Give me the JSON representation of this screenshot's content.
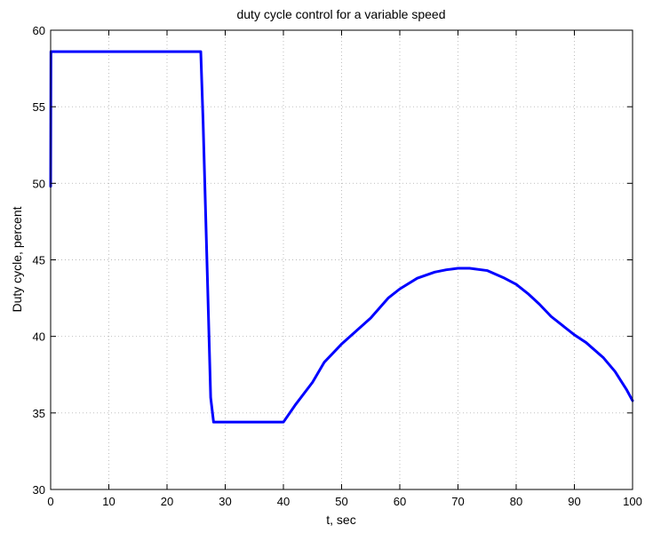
{
  "chart_data": {
    "type": "line",
    "title": "duty cycle control for a variable speed",
    "xlabel": "t, sec",
    "ylabel": "Duty cycle, percent",
    "xlim": [
      0,
      100
    ],
    "ylim": [
      30,
      60
    ],
    "xticks": [
      0,
      10,
      20,
      30,
      40,
      50,
      60,
      70,
      80,
      90,
      100
    ],
    "yticks": [
      30,
      35,
      40,
      45,
      50,
      55,
      60
    ],
    "grid": true,
    "line_color": "#0000ff",
    "series": [
      {
        "x": [
          0,
          0.05,
          1,
          10,
          20,
          24,
          25.5,
          25.8,
          26.2,
          27,
          27.5,
          28,
          30,
          35,
          40,
          42,
          45,
          47,
          50,
          55,
          58,
          60,
          63,
          66,
          68,
          70,
          72,
          75,
          78,
          80,
          82,
          84,
          86,
          88,
          90,
          92,
          95,
          97,
          98,
          99,
          100
        ],
        "y": [
          49.8,
          58.6,
          58.6,
          58.6,
          58.6,
          58.6,
          58.6,
          58.6,
          54,
          43,
          36,
          34.4,
          34.4,
          34.4,
          34.4,
          35.5,
          37,
          38.3,
          39.5,
          41.2,
          42.5,
          43.1,
          43.8,
          44.2,
          44.35,
          44.45,
          44.45,
          44.3,
          43.8,
          43.4,
          42.8,
          42.1,
          41.3,
          40.7,
          40.1,
          39.6,
          38.6,
          37.7,
          37.1,
          36.5,
          35.8
        ]
      }
    ]
  }
}
